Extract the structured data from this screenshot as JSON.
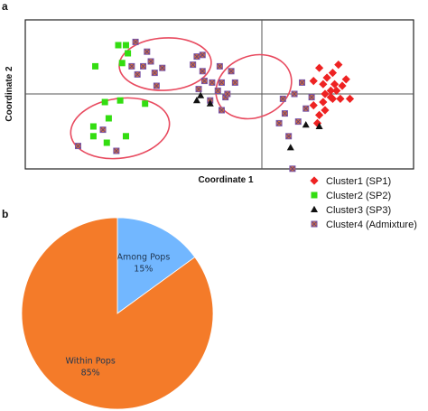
{
  "panels": {
    "a": "a",
    "b": "b"
  },
  "chart_data": [
    {
      "type": "scatter",
      "xlabel": "Coordinate 1",
      "ylabel": "Coordinate 2",
      "grid": false,
      "legend_placement": "bottom-right",
      "series": [
        {
          "name": "Cluster1 (SP1)",
          "marker": "diamond",
          "color": "#ee2222",
          "points": [
            [
              0.3,
              0.16
            ],
            [
              0.34,
              0.1
            ],
            [
              0.37,
              0.13
            ],
            [
              0.32,
              0.06
            ],
            [
              0.27,
              0.08
            ],
            [
              0.4,
              0.18
            ],
            [
              0.36,
              0.02
            ],
            [
              0.39,
              0.02
            ],
            [
              0.42,
              0.05
            ],
            [
              0.33,
              0.0
            ],
            [
              0.37,
              -0.03
            ],
            [
              0.41,
              -0.03
            ],
            [
              0.46,
              -0.03
            ],
            [
              0.38,
              0.06
            ],
            [
              0.44,
              0.09
            ],
            [
              0.36,
              -0.02
            ],
            [
              0.32,
              -0.05
            ],
            [
              0.27,
              -0.07
            ],
            [
              0.33,
              -0.1
            ],
            [
              0.3,
              -0.13
            ],
            [
              0.29,
              -0.18
            ]
          ]
        },
        {
          "name": "Cluster2 (SP2)",
          "marker": "square",
          "color": "#33dd11",
          "points": [
            [
              -0.75,
              0.3
            ],
            [
              -0.71,
              0.3
            ],
            [
              -0.7,
              0.25
            ],
            [
              -0.73,
              0.19
            ],
            [
              -0.87,
              0.17
            ],
            [
              -0.82,
              -0.05
            ],
            [
              -0.74,
              -0.04
            ],
            [
              -0.61,
              -0.06
            ],
            [
              -0.8,
              -0.15
            ],
            [
              -0.88,
              -0.2
            ],
            [
              -0.81,
              -0.3
            ],
            [
              -0.88,
              -0.26
            ],
            [
              -0.71,
              -0.26
            ]
          ]
        },
        {
          "name": "Cluster3 (SP3)",
          "marker": "triangle",
          "color": "#111111",
          "points": [
            [
              -0.32,
              -0.01
            ],
            [
              -0.34,
              -0.04
            ],
            [
              -0.27,
              -0.06
            ],
            [
              0.15,
              -0.33
            ],
            [
              0.23,
              -0.19
            ],
            [
              0.3,
              -0.2
            ]
          ]
        },
        {
          "name": "Cluster4 (Admixture)",
          "marker": "hatched-square",
          "color": "#d2703a",
          "points": [
            [
              -0.66,
              0.32
            ],
            [
              -0.6,
              0.26
            ],
            [
              -0.68,
              0.17
            ],
            [
              -0.62,
              0.17
            ],
            [
              -0.58,
              0.2
            ],
            [
              -0.56,
              0.13
            ],
            [
              -0.65,
              0.12
            ],
            [
              -0.55,
              0.05
            ],
            [
              -0.52,
              0.16
            ],
            [
              -0.83,
              -0.22
            ],
            [
              -0.96,
              -0.32
            ],
            [
              -0.76,
              -0.35
            ],
            [
              -0.36,
              0.18
            ],
            [
              -0.34,
              0.23
            ],
            [
              -0.31,
              0.24
            ],
            [
              -0.31,
              0.14
            ],
            [
              -0.22,
              0.17
            ],
            [
              -0.16,
              0.14
            ],
            [
              -0.26,
              0.07
            ],
            [
              -0.21,
              0.07
            ],
            [
              -0.23,
              0.02
            ],
            [
              -0.19,
              -0.02
            ],
            [
              -0.27,
              -0.04
            ],
            [
              -0.3,
              0.08
            ],
            [
              -0.33,
              0.03
            ],
            [
              -0.21,
              -0.1
            ],
            [
              -0.14,
              0.07
            ],
            [
              -0.18,
              0.0
            ],
            [
              0.11,
              -0.03
            ],
            [
              0.17,
              0.0
            ],
            [
              0.21,
              0.07
            ],
            [
              0.12,
              -0.12
            ],
            [
              0.09,
              -0.18
            ],
            [
              0.14,
              -0.26
            ],
            [
              0.19,
              -0.17
            ],
            [
              0.23,
              -0.09
            ],
            [
              0.26,
              -0.02
            ],
            [
              0.16,
              -0.46
            ]
          ]
        }
      ]
    },
    {
      "type": "pie",
      "slices": [
        {
          "label": "Among Pops",
          "value": 15,
          "value_label": "15%",
          "color": "#72b7ff"
        },
        {
          "label": "Within Pops",
          "value": 85,
          "value_label": "85%",
          "color": "#f47b29"
        }
      ]
    }
  ]
}
